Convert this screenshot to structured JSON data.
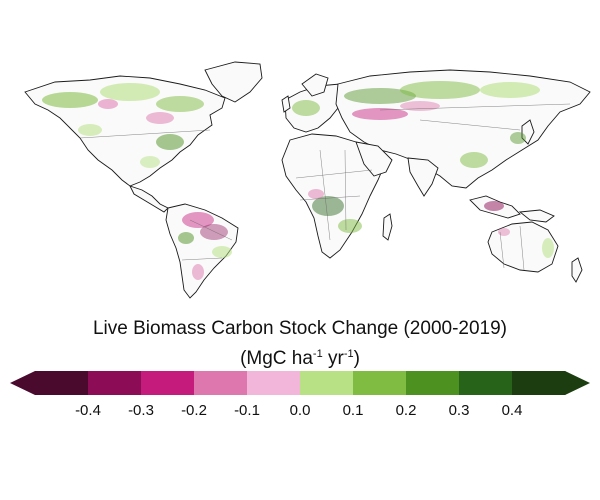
{
  "map": {
    "title": "Live Biomass Carbon Stock Change (2000-2019)",
    "units": {
      "prefix": "(MgC ha",
      "exp1": "-1",
      "middle": " yr",
      "exp2": "-1",
      "suffix": ")"
    }
  },
  "colors": {
    "ocean": "#ffffff",
    "land_base": "#ffffff",
    "border": "#555555",
    "coast": "#111111"
  },
  "legend": {
    "bins": [
      {
        "color": "#4a0a2e"
      },
      {
        "color": "#8c0d55"
      },
      {
        "color": "#c51b7d"
      },
      {
        "color": "#de77ae"
      },
      {
        "color": "#f1b6da"
      },
      {
        "color": "#b8e186"
      },
      {
        "color": "#7fbc41"
      },
      {
        "color": "#4d9221"
      },
      {
        "color": "#276419"
      },
      {
        "color": "#1b3d0f"
      }
    ],
    "ticks": [
      "-0.4",
      "-0.3",
      "-0.2",
      "-0.1",
      "0.0",
      "0.1",
      "0.2",
      "0.3",
      "0.4"
    ],
    "extend": "both"
  }
}
